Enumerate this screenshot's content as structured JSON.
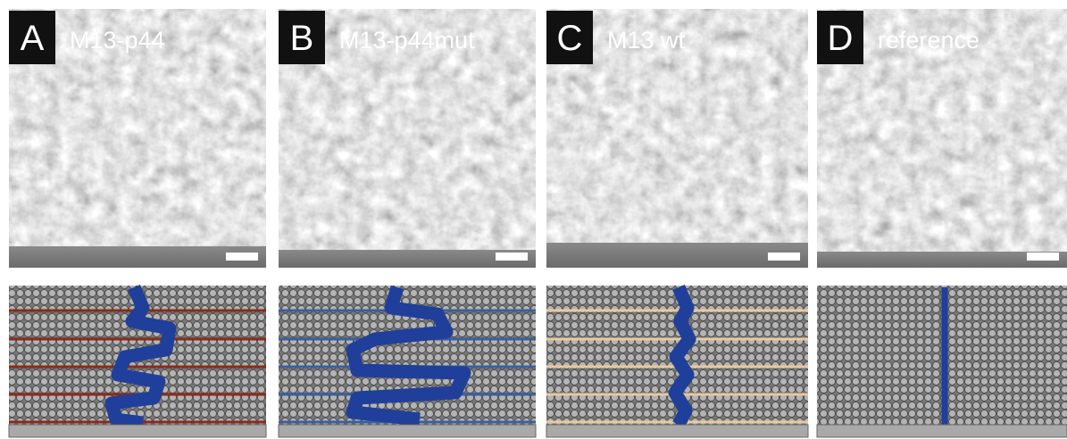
{
  "panels": [
    {
      "letter": "A",
      "label": "M13-p44"
    },
    {
      "letter": "B",
      "label": "M13-p44mut"
    },
    {
      "letter": "C",
      "label": "M13 wt"
    },
    {
      "letter": "D",
      "label": "reference"
    }
  ]
}
